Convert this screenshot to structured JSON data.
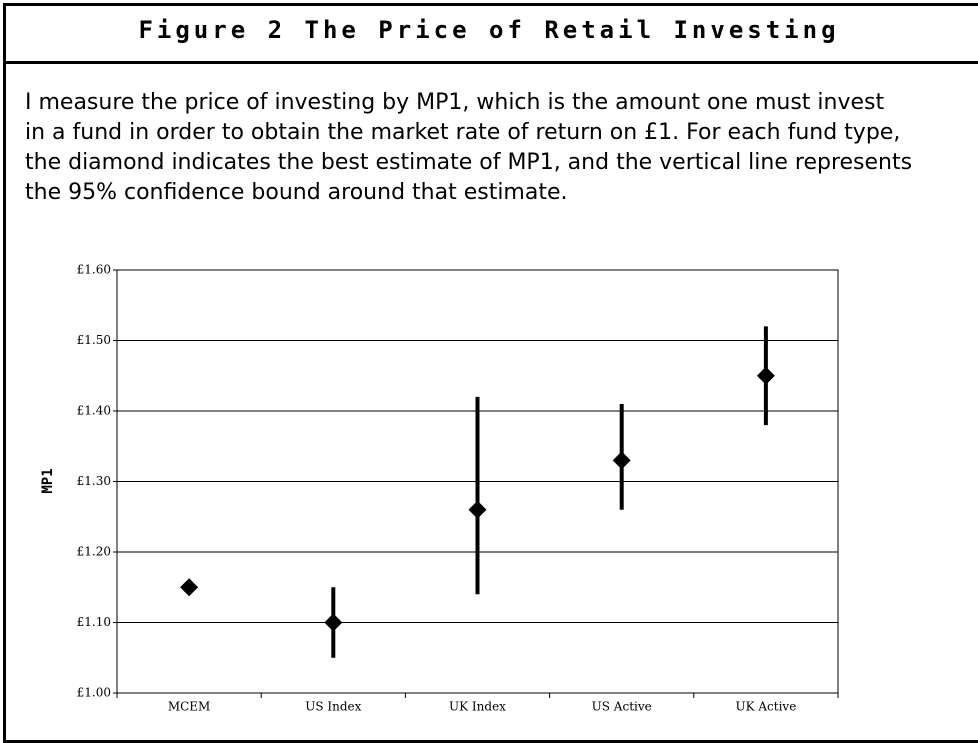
{
  "header": {
    "title": "Figure 2 The Price of Retail Investing"
  },
  "description": [
    "I measure the price of investing by MP1, which is the amount one must invest",
    "in a fund in order to obtain the market rate of return on £1. For each fund type,",
    "the diamond indicates the best estimate of MP1, and the vertical line represents",
    "the 95% confidence bound around that estimate."
  ],
  "chart_data": {
    "type": "errorbar",
    "y_label": "MP1",
    "categories": [
      "MCEM",
      "US Index",
      "UK Index",
      "US Active",
      "UK Active"
    ],
    "values": [
      1.15,
      1.1,
      1.26,
      1.33,
      1.45
    ],
    "lower": [
      null,
      1.05,
      1.14,
      1.26,
      1.38
    ],
    "upper": [
      null,
      1.15,
      1.42,
      1.41,
      1.52
    ],
    "color": "#000000",
    "ylim": [
      1.0,
      1.6
    ],
    "yticks": [
      {
        "value": 1.0,
        "label": "£1.00"
      },
      {
        "value": 1.1,
        "label": "£1.10"
      },
      {
        "value": 1.2,
        "label": "£1.20"
      },
      {
        "value": 1.3,
        "label": "£1.30"
      },
      {
        "value": 1.4,
        "label": "£1.40"
      },
      {
        "value": 1.5,
        "label": "£1.50"
      },
      {
        "value": 1.6,
        "label": "£1.60"
      }
    ],
    "grid": true
  }
}
